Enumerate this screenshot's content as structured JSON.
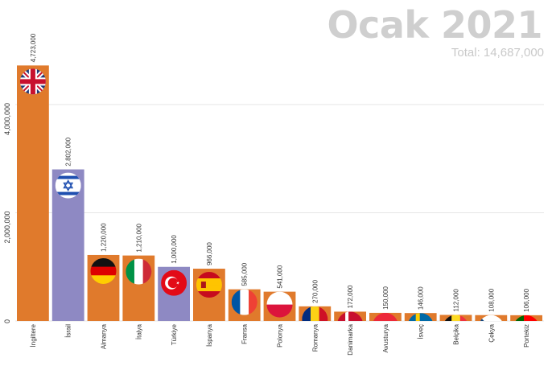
{
  "header": {
    "title": "Ocak 2021",
    "total": "Total: 14,687,000"
  },
  "colors": {
    "orange": "#E07A2C",
    "purple": "#8E89C3",
    "grid": "#e6e6e6",
    "text": "#333333"
  },
  "chart_data": {
    "type": "bar",
    "title": "Ocak 2021",
    "ylim": [
      0,
      5000000
    ],
    "yticks": [
      0,
      2000000,
      4000000
    ],
    "ytick_labels": [
      "0",
      "2,000,000",
      "4,000,000"
    ],
    "grid": true,
    "categories": [
      "İngiltere",
      "İsrail",
      "Almanya",
      "İtalya",
      "Türkiye",
      "İspanya",
      "Fransa",
      "Polonya",
      "Romanya",
      "Danimarka",
      "Avusturya",
      "İsveç",
      "Belçika",
      "Çekya",
      "Portekiz"
    ],
    "values": [
      4723000,
      2802000,
      1220000,
      1210000,
      1000000,
      966000,
      585000,
      541000,
      270000,
      172000,
      150000,
      146000,
      112000,
      108000,
      106000
    ],
    "value_labels": [
      "4,723,000",
      "2,802,000",
      "1,220,000",
      "1,210,000",
      "1,000,000",
      "966,000",
      "585,000",
      "541,000",
      "270,000",
      "172,000",
      "150,000",
      "146,000",
      "112,000",
      "108,000",
      "106,000"
    ],
    "bar_colors": [
      "orange",
      "purple",
      "orange",
      "orange",
      "purple",
      "orange",
      "orange",
      "orange",
      "orange",
      "orange",
      "orange",
      "orange",
      "orange",
      "orange",
      "orange"
    ],
    "flags": [
      "uk-flag-icon",
      "israel-flag-icon",
      "germany-flag-icon",
      "italy-flag-icon",
      "turkey-flag-icon",
      "spain-flag-icon",
      "france-flag-icon",
      "poland-flag-icon",
      "romania-flag-icon",
      "denmark-flag-icon",
      "austria-flag-icon",
      "sweden-flag-icon",
      "belgium-flag-icon",
      "czechia-flag-icon",
      "portugal-flag-icon"
    ]
  }
}
